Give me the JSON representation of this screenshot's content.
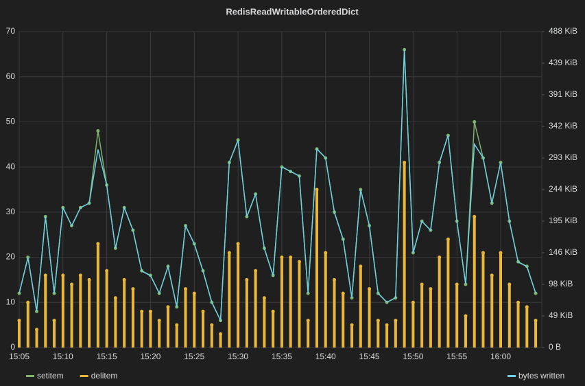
{
  "chart_data": {
    "type": "combo",
    "title": "RedisReadWritableOrderedDict",
    "x": [
      "15:05",
      "15:06",
      "15:07",
      "15:08",
      "15:09",
      "15:10",
      "15:11",
      "15:12",
      "15:13",
      "15:14",
      "15:15",
      "15:16",
      "15:17",
      "15:18",
      "15:19",
      "15:20",
      "15:21",
      "15:22",
      "15:23",
      "15:24",
      "15:25",
      "15:26",
      "15:27",
      "15:28",
      "15:29",
      "15:30",
      "15:31",
      "15:32",
      "15:33",
      "15:34",
      "15:35",
      "15:36",
      "15:37",
      "15:38",
      "15:39",
      "15:40",
      "15:41",
      "15:42",
      "15:43",
      "15:44",
      "15:45",
      "15:46",
      "15:47",
      "15:48",
      "15:49",
      "15:50",
      "15:51",
      "15:52",
      "15:53",
      "15:54",
      "15:55",
      "15:56",
      "15:57",
      "15:58",
      "15:59",
      "16:00",
      "16:01",
      "16:02",
      "16:03",
      "16:04"
    ],
    "xticks": [
      "15:05",
      "15:10",
      "15:15",
      "15:20",
      "15:25",
      "15:30",
      "15:35",
      "15:40",
      "15:45",
      "15:50",
      "15:55",
      "16:00"
    ],
    "ylim": [
      0,
      70
    ],
    "yticks": [
      0,
      10,
      20,
      30,
      40,
      50,
      60,
      70
    ],
    "y2lim": [
      0,
      488
    ],
    "y2ticks": [
      {
        "value": 0,
        "label": "0 B"
      },
      {
        "value": 48.8,
        "label": "49 KiB"
      },
      {
        "value": 97.6,
        "label": "98 KiB"
      },
      {
        "value": 146.4,
        "label": "146 KiB"
      },
      {
        "value": 195.2,
        "label": "195 KiB"
      },
      {
        "value": 244,
        "label": "244 KiB"
      },
      {
        "value": 292.8,
        "label": "293 KiB"
      },
      {
        "value": 341.6,
        "label": "342 KiB"
      },
      {
        "value": 390.4,
        "label": "391 KiB"
      },
      {
        "value": 439.2,
        "label": "439 KiB"
      },
      {
        "value": 488,
        "label": "488 KiB"
      }
    ],
    "grid": true,
    "series": [
      {
        "name": "setitem",
        "kind": "line",
        "color": "#7eb26d",
        "values": [
          12,
          20,
          8,
          29,
          12,
          31,
          27,
          31,
          32,
          48,
          36,
          22,
          31,
          26,
          17,
          16,
          12,
          18,
          9,
          27,
          23,
          17,
          10,
          6,
          41,
          46,
          29,
          34,
          22,
          16,
          40,
          39,
          38,
          12,
          44,
          42,
          30,
          24,
          11,
          35,
          27,
          12,
          10,
          11,
          66,
          21,
          28,
          26,
          41,
          47,
          28,
          14,
          50,
          42,
          32,
          41,
          28,
          19,
          18,
          12
        ]
      },
      {
        "name": "delitem",
        "kind": "bar",
        "color": "#eab839",
        "values": [
          6,
          10,
          4,
          16,
          6,
          16,
          14,
          16,
          15,
          23,
          17,
          11,
          15,
          13,
          8,
          8,
          6,
          9,
          5,
          13,
          12,
          8,
          5,
          3,
          21,
          23,
          15,
          17,
          11,
          8,
          20,
          20,
          19,
          6,
          35,
          21,
          15,
          12,
          5,
          18,
          13,
          6,
          5,
          6,
          41,
          10,
          14,
          13,
          20,
          24,
          14,
          7,
          29,
          21,
          16,
          21,
          14,
          10,
          9,
          6
        ]
      },
      {
        "name": "bytes written",
        "kind": "line",
        "axis": "y2",
        "color": "#6ed0e0",
        "values": [
          84,
          139,
          56,
          202,
          84,
          216,
          188,
          216,
          223,
          306,
          251,
          153,
          216,
          181,
          118,
          111,
          84,
          125,
          63,
          188,
          160,
          118,
          70,
          42,
          286,
          320,
          202,
          237,
          153,
          111,
          279,
          272,
          265,
          84,
          307,
          293,
          209,
          167,
          77,
          244,
          188,
          84,
          70,
          77,
          460,
          146,
          195,
          181,
          286,
          328,
          195,
          98,
          314,
          293,
          223,
          286,
          195,
          132,
          125,
          84
        ]
      }
    ]
  }
}
